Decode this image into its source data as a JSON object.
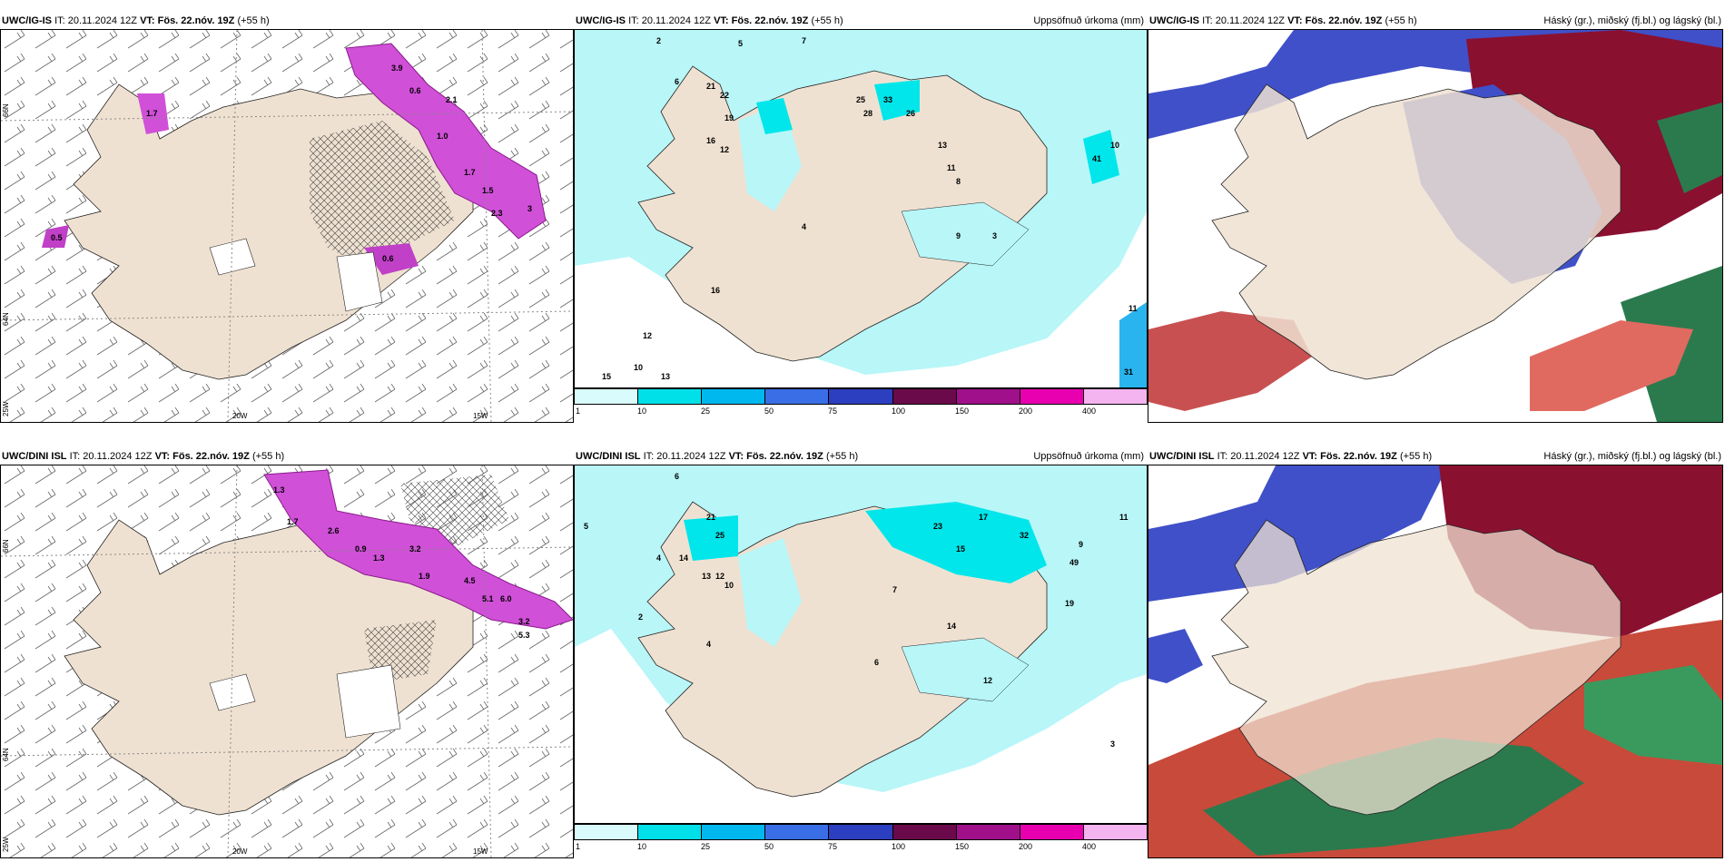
{
  "panels": [
    {
      "id": "p1",
      "model": "UWC/IG-IS",
      "it_label": "IT:",
      "it": "20.11.2024 12Z",
      "vt_label": "VT:",
      "vt": "Fös. 22.nóv. 19Z",
      "lead": "(+55 h)",
      "right": ""
    },
    {
      "id": "p2",
      "model": "UWC/IG-IS",
      "it_label": "IT:",
      "it": "20.11.2024 12Z",
      "vt_label": "VT:",
      "vt": "Fös. 22.nóv. 19Z",
      "lead": "(+55 h)",
      "right": "Uppsöfnuð úrkoma (mm)"
    },
    {
      "id": "p3",
      "model": "UWC/IG-IS",
      "it_label": "IT:",
      "it": "20.11.2024 12Z",
      "vt_label": "VT:",
      "vt": "Fös. 22.nóv. 19Z",
      "lead": "(+55 h)",
      "right": "Háský (gr.), miðský (fj.bl.) og lágský (bl.)"
    },
    {
      "id": "p4",
      "model": "UWC/DINI ISL",
      "it_label": "IT:",
      "it": "20.11.2024 12Z",
      "vt_label": "VT:",
      "vt": "Fös. 22.nóv. 19Z",
      "lead": "(+55 h)",
      "right": ""
    },
    {
      "id": "p5",
      "model": "UWC/DINI ISL",
      "it_label": "IT:",
      "it": "20.11.2024 12Z",
      "vt_label": "VT:",
      "vt": "Fös. 22.nóv. 19Z",
      "lead": "(+55 h)",
      "right": "Uppsöfnuð úrkoma (mm)"
    },
    {
      "id": "p6",
      "model": "UWC/DINI ISL",
      "it_label": "IT:",
      "it": "20.11.2024 12Z",
      "vt_label": "VT:",
      "vt": "Fös. 22.nóv. 19Z",
      "lead": "(+55 h)",
      "right": "Háský (gr.), miðský (fj.bl.) og lágský (bl.)"
    }
  ],
  "map_labels": {
    "lat66": "66N",
    "lat64": "64N",
    "lon20": "20W",
    "lon15": "15W",
    "lon25": "25W"
  },
  "legend": {
    "labels": [
      "1",
      "10",
      "25",
      "50",
      "75",
      "100",
      "150",
      "200",
      "400"
    ],
    "colors": [
      "#d9fbfb",
      "#00e0e8",
      "#00b8ee",
      "#3a6ee6",
      "#2c3fc0",
      "#6a0a4a",
      "#a0108a",
      "#e800b0",
      "#f4b4f0"
    ]
  },
  "colors": {
    "land": "#efe1d1",
    "precip_light": "#b8f6f8",
    "precip_mid": "#00e6ea",
    "snow": "#b43cb4",
    "snow_light": "#e070e8",
    "high_cloud": "#2b7a4e",
    "mid_cloud": "#a01030",
    "low_cloud": "#4050c8"
  },
  "snow_values_top": [
    "3.9",
    "0.6",
    "2.1",
    "1.0",
    "1.7",
    "1.5",
    "2.3",
    "3",
    "0.5",
    "1.7",
    "0.6"
  ],
  "snow_values_bottom": [
    "1.3",
    "1.7",
    "2.6",
    "0.9",
    "1.3",
    "3.2",
    "1.9",
    "4.5",
    "6.0",
    "5.1",
    "3.2",
    "5.3"
  ],
  "precip_values_top": [
    "2",
    "5",
    "7",
    "6",
    "21",
    "22",
    "19",
    "16",
    "12",
    "25",
    "28",
    "33",
    "26",
    "13",
    "11",
    "8",
    "41",
    "10",
    "9",
    "4",
    "3",
    "16",
    "12",
    "10",
    "13",
    "15",
    "31",
    "11"
  ],
  "precip_values_bottom": [
    "6",
    "5",
    "4",
    "21",
    "25",
    "14",
    "13",
    "12",
    "10",
    "23",
    "17",
    "32",
    "49",
    "15",
    "9",
    "19",
    "7",
    "6",
    "12",
    "14",
    "4",
    "2",
    "3",
    "11"
  ]
}
